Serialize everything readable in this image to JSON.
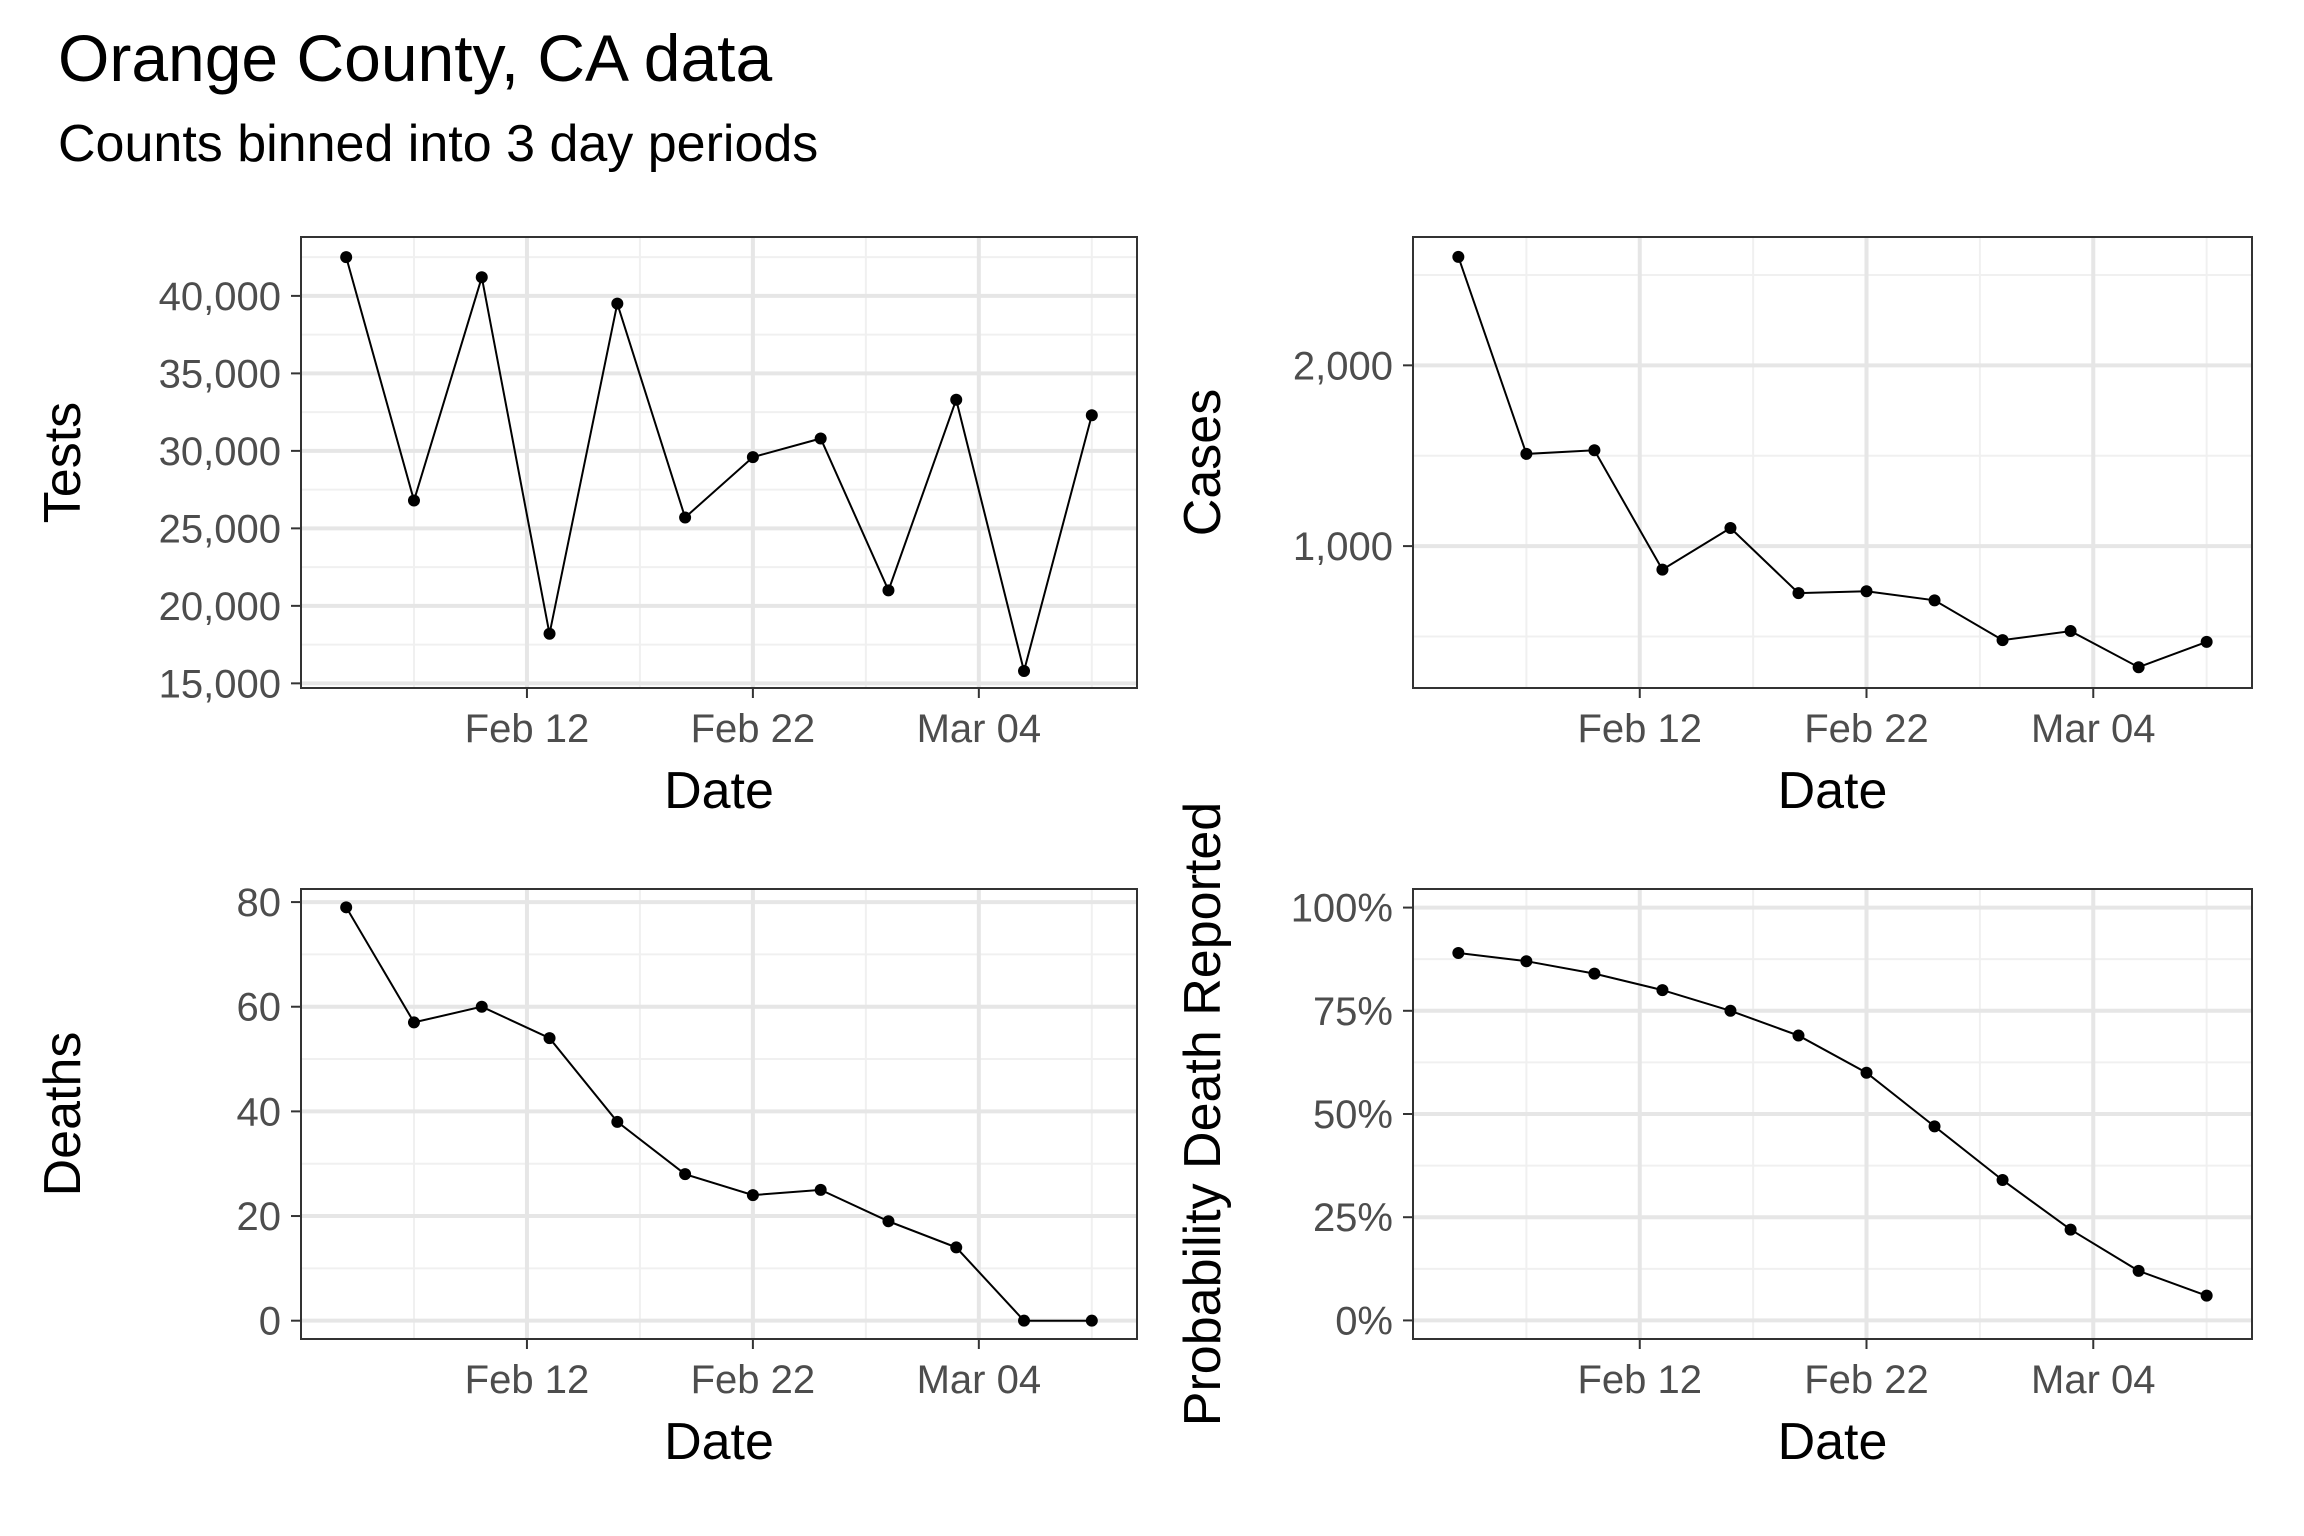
{
  "figure": {
    "title": "Orange County, CA data",
    "subtitle": "Counts binned into 3 day periods"
  },
  "chart_data": [
    {
      "type": "line",
      "xlabel": "Date",
      "ylabel": "Tests",
      "x": [
        "2021-02-04",
        "2021-02-07",
        "2021-02-10",
        "2021-02-13",
        "2021-02-16",
        "2021-02-19",
        "2021-02-22",
        "2021-02-25",
        "2021-02-28",
        "2021-03-03",
        "2021-03-06",
        "2021-03-09"
      ],
      "series": [
        {
          "values": [
            42500,
            26800,
            41200,
            18200,
            39500,
            25700,
            29600,
            30800,
            21000,
            33300,
            15800,
            32300
          ]
        }
      ],
      "xlim": [
        "2021-02-02",
        "2021-03-11"
      ],
      "ylim": [
        14700,
        43800
      ],
      "x_ticks": [
        "Feb 12",
        "Feb 22",
        "Mar 04"
      ],
      "y_ticks": [
        "15,000",
        "20,000",
        "25,000",
        "30,000",
        "35,000",
        "40,000"
      ],
      "grid": true
    },
    {
      "type": "line",
      "xlabel": "Date",
      "ylabel": "Cases",
      "x": [
        "2021-02-04",
        "2021-02-07",
        "2021-02-10",
        "2021-02-13",
        "2021-02-16",
        "2021-02-19",
        "2021-02-22",
        "2021-02-25",
        "2021-02-28",
        "2021-03-03",
        "2021-03-06",
        "2021-03-09"
      ],
      "series": [
        {
          "values": [
            2600,
            1510,
            1530,
            870,
            1100,
            740,
            750,
            700,
            480,
            530,
            330,
            470
          ]
        }
      ],
      "xlim": [
        "2021-02-02",
        "2021-03-11"
      ],
      "ylim": [
        215,
        2710
      ],
      "x_ticks": [
        "Feb 12",
        "Feb 22",
        "Mar 04"
      ],
      "y_ticks": [
        "1,000",
        "2,000"
      ],
      "grid": true
    },
    {
      "type": "line",
      "xlabel": "Date",
      "ylabel": "Deaths",
      "x": [
        "2021-02-04",
        "2021-02-07",
        "2021-02-10",
        "2021-02-13",
        "2021-02-16",
        "2021-02-19",
        "2021-02-22",
        "2021-02-25",
        "2021-02-28",
        "2021-03-03",
        "2021-03-06",
        "2021-03-09"
      ],
      "series": [
        {
          "values": [
            79,
            57,
            60,
            54,
            38,
            28,
            24,
            25,
            19,
            14,
            0,
            0
          ]
        }
      ],
      "xlim": [
        "2021-02-02",
        "2021-03-11"
      ],
      "ylim": [
        -3.5,
        82.5
      ],
      "x_ticks": [
        "Feb 12",
        "Feb 22",
        "Mar 04"
      ],
      "y_ticks": [
        "0",
        "20",
        "40",
        "60",
        "80"
      ],
      "grid": true
    },
    {
      "type": "line",
      "xlabel": "Date",
      "ylabel": "Probability Death Reported",
      "x": [
        "2021-02-04",
        "2021-02-07",
        "2021-02-10",
        "2021-02-13",
        "2021-02-16",
        "2021-02-19",
        "2021-02-22",
        "2021-02-25",
        "2021-02-28",
        "2021-03-03",
        "2021-03-06",
        "2021-03-09"
      ],
      "series": [
        {
          "values": [
            0.89,
            0.87,
            0.84,
            0.8,
            0.75,
            0.69,
            0.6,
            0.47,
            0.34,
            0.22,
            0.12,
            0.06
          ]
        }
      ],
      "xlim": [
        "2021-02-02",
        "2021-03-11"
      ],
      "ylim": [
        -0.045,
        1.045
      ],
      "x_ticks": [
        "Feb 12",
        "Feb 22",
        "Mar 04"
      ],
      "y_ticks": [
        "0%",
        "25%",
        "50%",
        "75%",
        "100%"
      ],
      "grid": true
    }
  ]
}
